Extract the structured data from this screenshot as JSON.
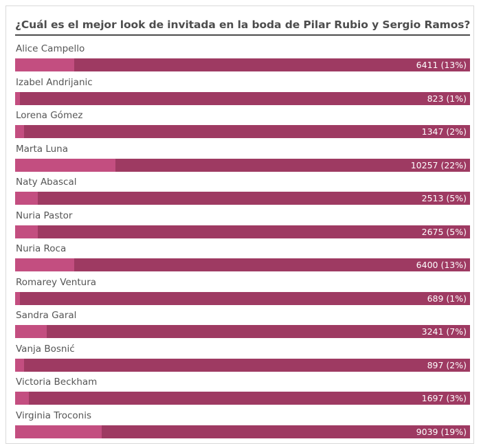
{
  "poll": {
    "question": "¿Cuál es el mejor look de invitada en la boda de Pilar Rubio y Sergio Ramos?",
    "colors": {
      "bar_background": "#9e3a62",
      "bar_fill": "#c34e80",
      "title_text": "#4d4d4d",
      "label_text": "#555555"
    },
    "options": [
      {
        "label": "Alice Campello",
        "votes": 6411,
        "percent": 13,
        "result_text": "6411 (13%)"
      },
      {
        "label": "Izabel Andrijanic",
        "votes": 823,
        "percent": 1,
        "result_text": "823 (1%)"
      },
      {
        "label": "Lorena Gómez",
        "votes": 1347,
        "percent": 2,
        "result_text": "1347 (2%)"
      },
      {
        "label": "Marta Luna",
        "votes": 10257,
        "percent": 22,
        "result_text": "10257 (22%)"
      },
      {
        "label": "Naty Abascal",
        "votes": 2513,
        "percent": 5,
        "result_text": "2513 (5%)"
      },
      {
        "label": "Nuria Pastor",
        "votes": 2675,
        "percent": 5,
        "result_text": "2675 (5%)"
      },
      {
        "label": "Nuria Roca",
        "votes": 6400,
        "percent": 13,
        "result_text": "6400 (13%)"
      },
      {
        "label": "Romarey Ventura",
        "votes": 689,
        "percent": 1,
        "result_text": "689 (1%)"
      },
      {
        "label": "Sandra Garal",
        "votes": 3241,
        "percent": 7,
        "result_text": "3241 (7%)"
      },
      {
        "label": "Vanja Bosnić",
        "votes": 897,
        "percent": 2,
        "result_text": "897 (2%)"
      },
      {
        "label": "Victoria Beckham",
        "votes": 1697,
        "percent": 3,
        "result_text": "1697 (3%)"
      },
      {
        "label": "Virginia Troconis",
        "votes": 9039,
        "percent": 19,
        "result_text": "9039 (19%)"
      }
    ]
  }
}
